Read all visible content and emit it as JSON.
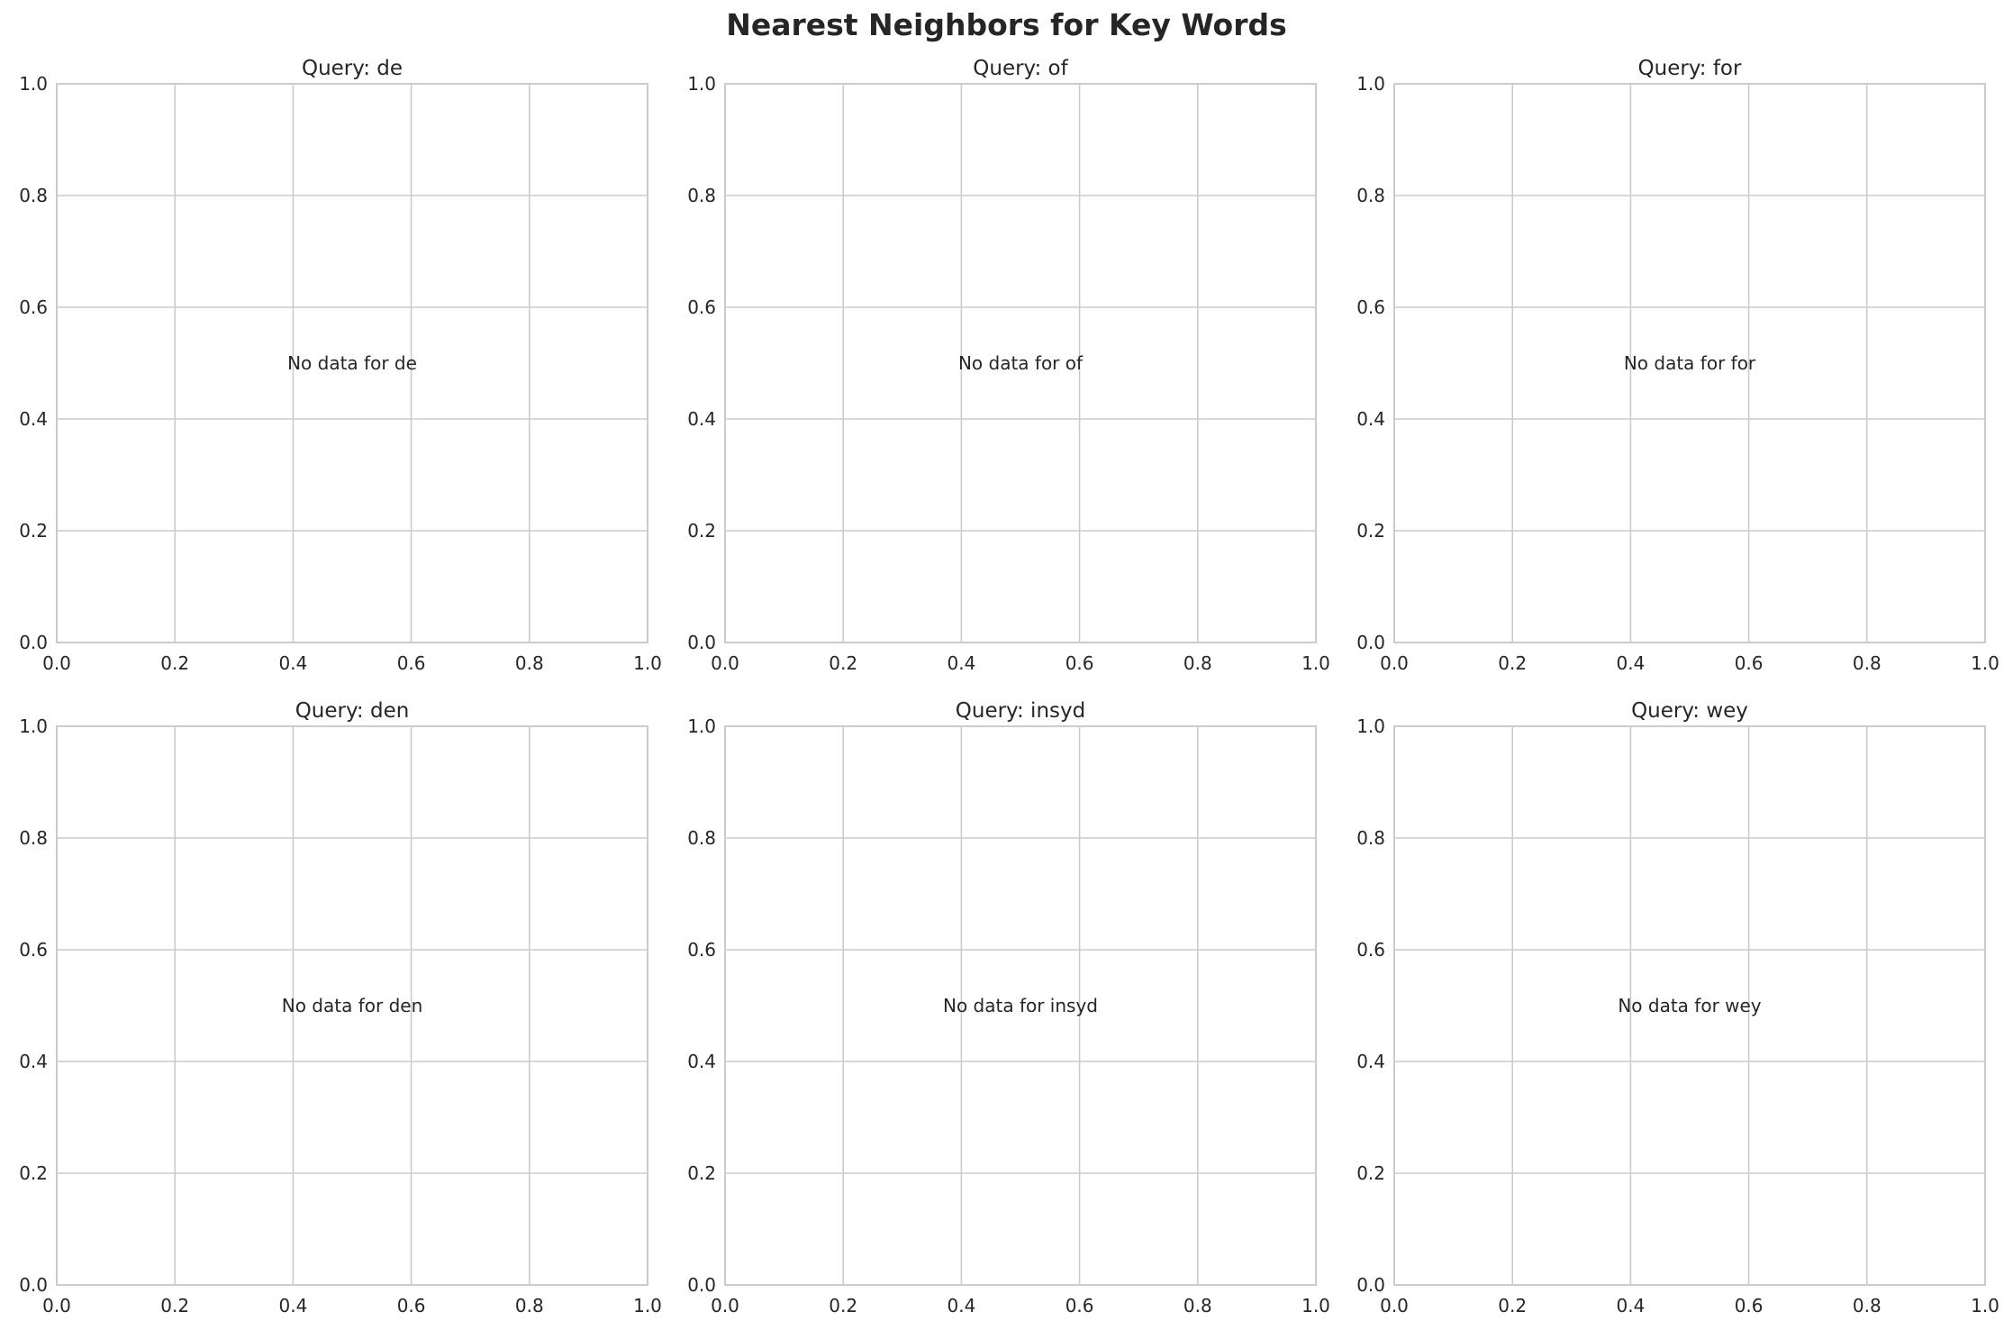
{
  "chart_data": {
    "title": "Nearest Neighbors for Key Words",
    "panels": [
      {
        "type": "scatter",
        "title": "Query: de",
        "annotation": "No data for de",
        "xlim": [
          0,
          1
        ],
        "ylim": [
          0,
          1
        ],
        "xticks": [
          "0.0",
          "0.2",
          "0.4",
          "0.6",
          "0.8",
          "1.0"
        ],
        "yticks": [
          "0.0",
          "0.2",
          "0.4",
          "0.6",
          "0.8",
          "1.0"
        ],
        "grid": true
      },
      {
        "type": "scatter",
        "title": "Query: of",
        "annotation": "No data for of",
        "xlim": [
          0,
          1
        ],
        "ylim": [
          0,
          1
        ],
        "xticks": [
          "0.0",
          "0.2",
          "0.4",
          "0.6",
          "0.8",
          "1.0"
        ],
        "yticks": [
          "0.0",
          "0.2",
          "0.4",
          "0.6",
          "0.8",
          "1.0"
        ],
        "grid": true
      },
      {
        "type": "scatter",
        "title": "Query: for",
        "annotation": "No data for for",
        "xlim": [
          0,
          1
        ],
        "ylim": [
          0,
          1
        ],
        "xticks": [
          "0.0",
          "0.2",
          "0.4",
          "0.6",
          "0.8",
          "1.0"
        ],
        "yticks": [
          "0.0",
          "0.2",
          "0.4",
          "0.6",
          "0.8",
          "1.0"
        ],
        "grid": true
      },
      {
        "type": "scatter",
        "title": "Query: den",
        "annotation": "No data for den",
        "xlim": [
          0,
          1
        ],
        "ylim": [
          0,
          1
        ],
        "xticks": [
          "0.0",
          "0.2",
          "0.4",
          "0.6",
          "0.8",
          "1.0"
        ],
        "yticks": [
          "0.0",
          "0.2",
          "0.4",
          "0.6",
          "0.8",
          "1.0"
        ],
        "grid": true
      },
      {
        "type": "scatter",
        "title": "Query: insyd",
        "annotation": "No data for insyd",
        "xlim": [
          0,
          1
        ],
        "ylim": [
          0,
          1
        ],
        "xticks": [
          "0.0",
          "0.2",
          "0.4",
          "0.6",
          "0.8",
          "1.0"
        ],
        "yticks": [
          "0.0",
          "0.2",
          "0.4",
          "0.6",
          "0.8",
          "1.0"
        ],
        "grid": true
      },
      {
        "type": "scatter",
        "title": "Query: wey",
        "annotation": "No data for wey",
        "xlim": [
          0,
          1
        ],
        "ylim": [
          0,
          1
        ],
        "xticks": [
          "0.0",
          "0.2",
          "0.4",
          "0.6",
          "0.8",
          "1.0"
        ],
        "yticks": [
          "0.0",
          "0.2",
          "0.4",
          "0.6",
          "0.8",
          "1.0"
        ],
        "grid": true
      }
    ],
    "colors": {
      "grid": "#cccccc",
      "text": "#262626"
    }
  }
}
